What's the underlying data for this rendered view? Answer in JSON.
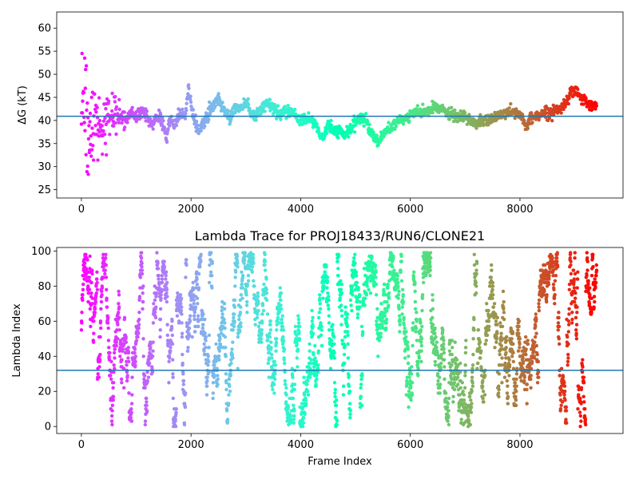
{
  "chart_data": [
    {
      "type": "scatter",
      "title": "",
      "xlabel": "",
      "ylabel": "ΔG (kT)",
      "xlim": [
        -450,
        9880
      ],
      "ylim": [
        23.2,
        63.5
      ],
      "xticks": [
        0,
        2000,
        4000,
        6000,
        8000
      ],
      "yticks": [
        25,
        30,
        35,
        40,
        45,
        50,
        55,
        60
      ],
      "hline": 40.9,
      "hline_color": "#1f77b4",
      "colormap": "rainbow (red at frame 0 to violet at last frame)",
      "n_frames": 9400,
      "trace_keypoints": {
        "x": [
          0,
          150,
          300,
          450,
          600,
          700,
          800,
          900,
          1000,
          1100,
          1200,
          1300,
          1400,
          1500,
          1560,
          1600,
          1700,
          1800,
          1900,
          1950,
          2050,
          2150,
          2300,
          2400,
          2500,
          2600,
          2700,
          2800,
          2900,
          3000,
          3100,
          3200,
          3300,
          3400,
          3550,
          3650,
          3800,
          4000,
          4150,
          4300,
          4400,
          4500,
          4600,
          4700,
          4800,
          4900,
          5000,
          5100,
          5200,
          5300,
          5420,
          5500,
          5600,
          5750,
          5900,
          6000,
          6100,
          6300,
          6500,
          6600,
          6800,
          7000,
          7200,
          7400,
          7600,
          7800,
          8000,
          8100,
          8200,
          8400,
          8600,
          8800,
          8950,
          9100,
          9250,
          9400
        ],
        "y": [
          42.0,
          42.0,
          39.0,
          40.0,
          42.0,
          41.0,
          40.0,
          41.5,
          40.5,
          42.0,
          41.0,
          39.0,
          41.0,
          39.0,
          36.0,
          40.0,
          39.0,
          41.5,
          41.0,
          47.0,
          40.0,
          38.0,
          41.0,
          43.0,
          45.0,
          42.0,
          40.5,
          43.0,
          42.5,
          44.0,
          41.0,
          41.5,
          43.0,
          43.5,
          42.5,
          41.0,
          42.0,
          40.0,
          40.5,
          38.5,
          36.0,
          39.0,
          37.5,
          38.0,
          36.5,
          38.0,
          39.5,
          40.5,
          40.0,
          37.0,
          35.5,
          37.0,
          38.0,
          39.5,
          40.5,
          41.0,
          41.5,
          42.0,
          43.0,
          42.0,
          41.0,
          40.5,
          39.5,
          40.0,
          41.0,
          42.0,
          41.5,
          38.5,
          40.5,
          41.5,
          42.0,
          43.0,
          47.0,
          45.0,
          43.5,
          43.0
        ]
      }
    },
    {
      "type": "scatter",
      "title": "Lambda Trace for PROJ18433/RUN6/CLONE21",
      "xlabel": "Frame Index",
      "ylabel": "Lambda Index",
      "xlim": [
        -450,
        9880
      ],
      "ylim": [
        -4,
        102
      ],
      "xticks": [
        0,
        2000,
        4000,
        6000,
        8000
      ],
      "yticks": [
        0,
        20,
        40,
        60,
        80,
        100
      ],
      "hline": 32,
      "hline_color": "#1f77b4",
      "colormap": "rainbow (red at frame 0 to violet at last frame)",
      "n_frames": 9400,
      "lambda_range": [
        0,
        99
      ]
    }
  ]
}
